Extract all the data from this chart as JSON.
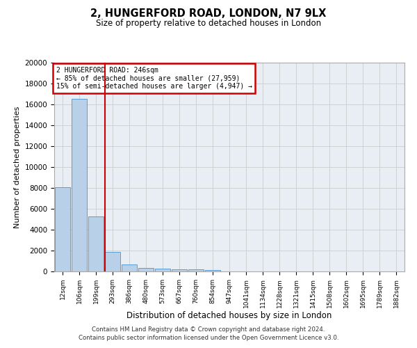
{
  "title": "2, HUNGERFORD ROAD, LONDON, N7 9LX",
  "subtitle": "Size of property relative to detached houses in London",
  "xlabel": "Distribution of detached houses by size in London",
  "ylabel": "Number of detached properties",
  "bin_labels": [
    "12sqm",
    "106sqm",
    "199sqm",
    "293sqm",
    "386sqm",
    "480sqm",
    "573sqm",
    "667sqm",
    "760sqm",
    "854sqm",
    "947sqm",
    "1041sqm",
    "1134sqm",
    "1228sqm",
    "1321sqm",
    "1415sqm",
    "1508sqm",
    "1602sqm",
    "1695sqm",
    "1789sqm",
    "1882sqm"
  ],
  "bar_heights": [
    8100,
    16500,
    5300,
    1850,
    700,
    350,
    280,
    230,
    200,
    130,
    0,
    0,
    0,
    0,
    0,
    0,
    0,
    0,
    0,
    0,
    0
  ],
  "bar_color": "#b8d0e8",
  "bar_edge_color": "#5b9bd5",
  "vline_x_index": 2.55,
  "vline_color": "#cc0000",
  "annotation_box_text": "2 HUNGERFORD ROAD: 246sqm\n← 85% of detached houses are smaller (27,959)\n15% of semi-detached houses are larger (4,947) →",
  "annotation_box_color": "#cc0000",
  "ylim": [
    0,
    20000
  ],
  "yticks": [
    0,
    2000,
    4000,
    6000,
    8000,
    10000,
    12000,
    14000,
    16000,
    18000,
    20000
  ],
  "grid_color": "#cccccc",
  "background_color": "#e8eef4",
  "footer_line1": "Contains HM Land Registry data © Crown copyright and database right 2024.",
  "footer_line2": "Contains public sector information licensed under the Open Government Licence v3.0."
}
